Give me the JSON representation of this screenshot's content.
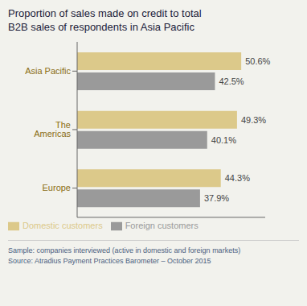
{
  "chart_data": {
    "type": "bar",
    "orientation": "horizontal",
    "title": "Proportion of sales made on credit to total",
    "subtitle": "B2B sales of respondents in Asia Pacific",
    "categories": [
      "Asia Pacific",
      "The Americas",
      "Europe"
    ],
    "series": [
      {
        "name": "Domestic customers",
        "color": "#dcc98a",
        "values": [
          50.6,
          49.3,
          44.3
        ],
        "value_labels": [
          "50.6%",
          "49.3%",
          "44.3%"
        ]
      },
      {
        "name": "Foreign customers",
        "color": "#9a9a9a",
        "values": [
          42.5,
          40.1,
          37.9
        ],
        "value_labels": [
          "42.5%",
          "40.1%",
          "37.9%"
        ]
      }
    ],
    "xlim": [
      0,
      58
    ],
    "data_labels": true,
    "tick_labels": "y",
    "grid": false,
    "legend": "lower left",
    "annotations": [
      "Sample: companies interviewed (active in domestic and foreign markets)",
      "Source: Atradius Payment Practices Barometer – October 2015"
    ]
  }
}
